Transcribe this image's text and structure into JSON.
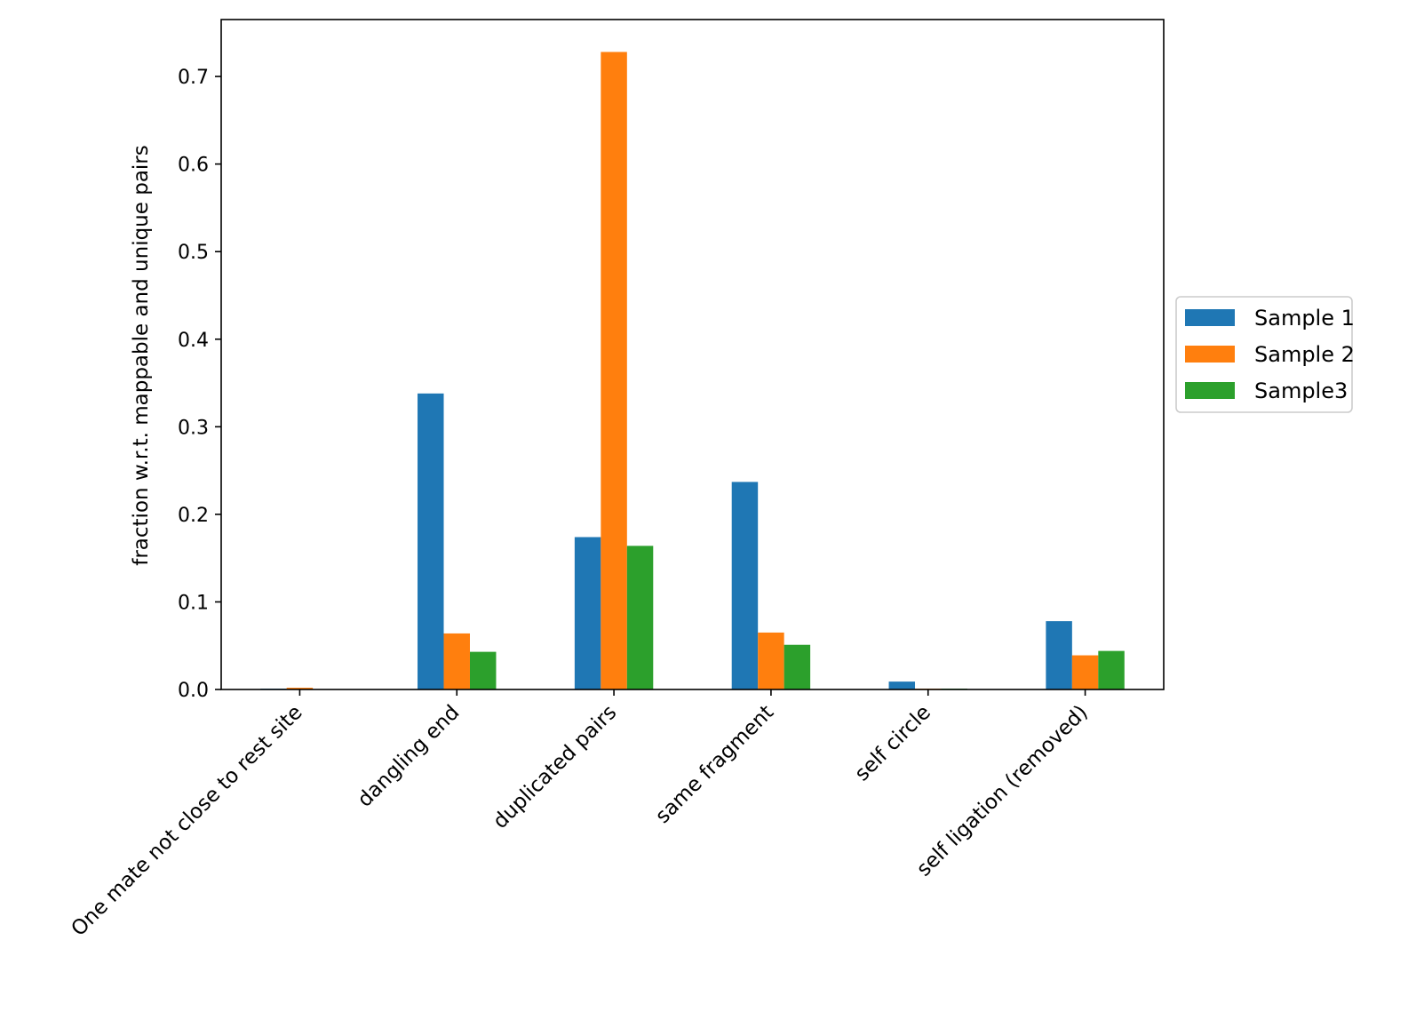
{
  "chart_data": {
    "type": "bar",
    "title": "",
    "xlabel": "",
    "ylabel": "fraction w.r.t. mappable and unique pairs",
    "categories": [
      "One mate not close to rest site",
      "dangling end",
      "duplicated pairs",
      "same fragment",
      "self circle",
      "self ligation (removed)"
    ],
    "series": [
      {
        "name": "Sample 1",
        "color": "#1f77b4",
        "values": [
          0.001,
          0.338,
          0.174,
          0.237,
          0.009,
          0.078
        ]
      },
      {
        "name": "Sample 2",
        "color": "#ff7f0e",
        "values": [
          0.002,
          0.064,
          0.728,
          0.065,
          0.001,
          0.039
        ]
      },
      {
        "name": "Sample3",
        "color": "#2ca02c",
        "values": [
          0.0,
          0.043,
          0.164,
          0.051,
          0.001,
          0.044
        ]
      }
    ],
    "ylim": [
      0,
      0.765
    ],
    "yticks": [
      0.0,
      0.1,
      0.2,
      0.3,
      0.4,
      0.5,
      0.6,
      0.7
    ],
    "ytick_labels": [
      "0.0",
      "0.1",
      "0.2",
      "0.3",
      "0.4",
      "0.5",
      "0.6",
      "0.7"
    ],
    "grid": false,
    "legend_position": "right, outside plot area"
  }
}
